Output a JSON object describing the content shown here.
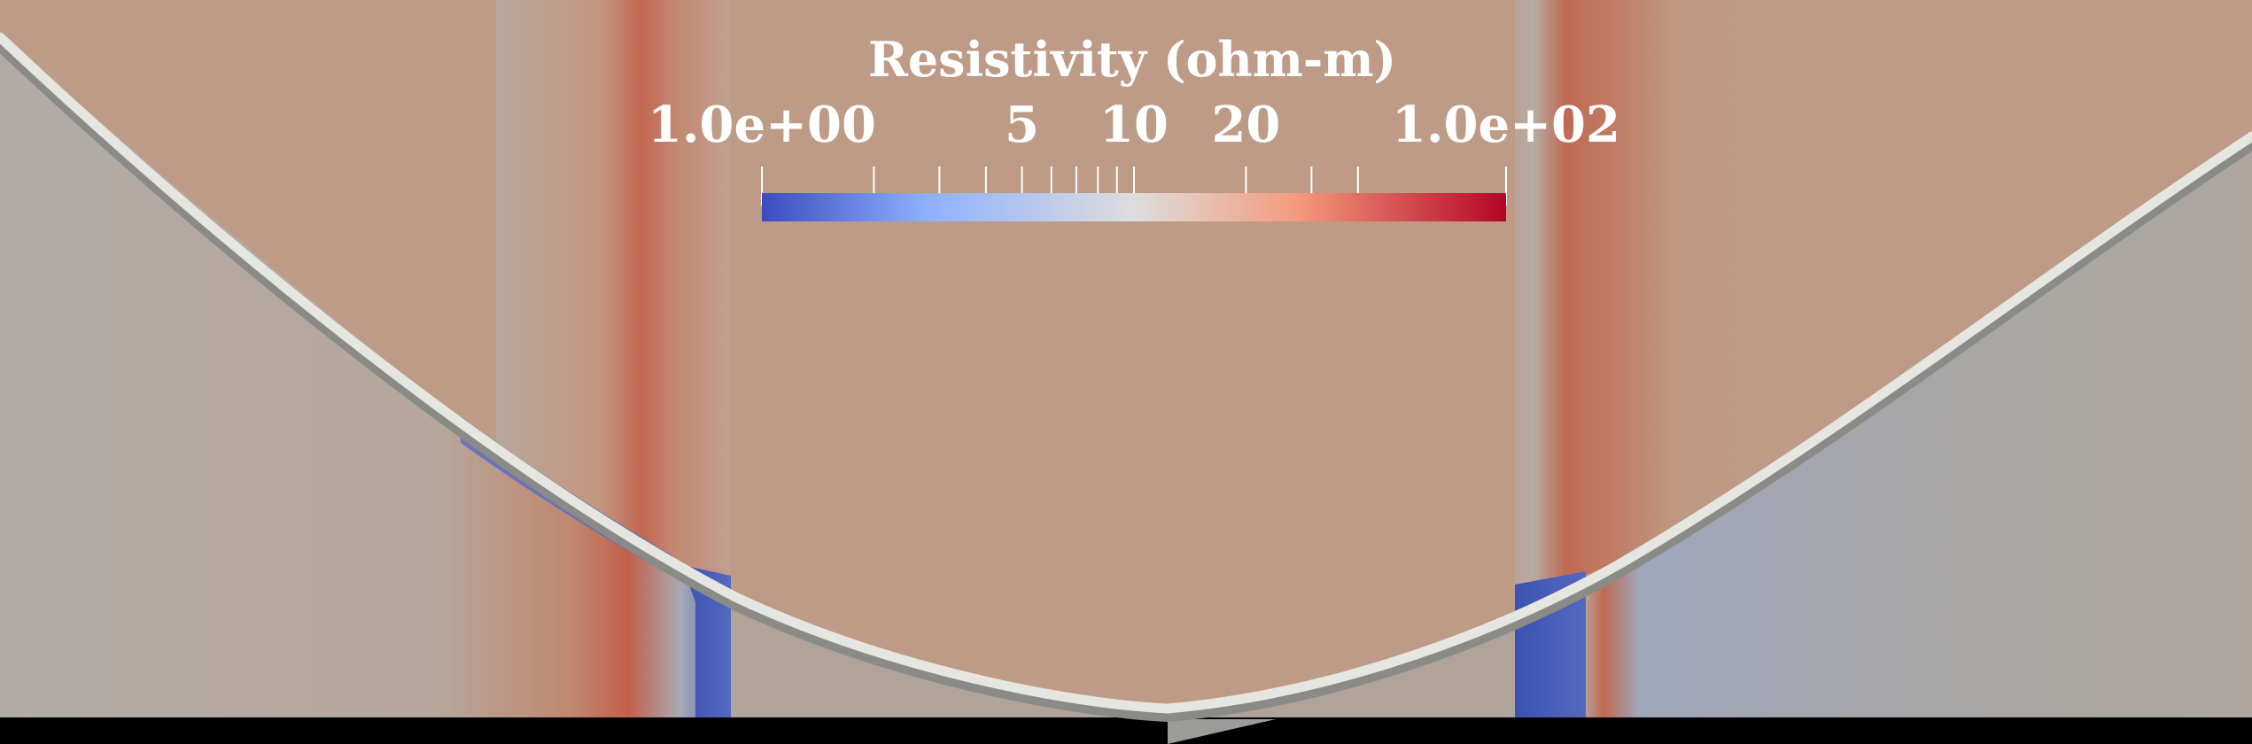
{
  "legend": {
    "title": "Resistivity (ohm-m)",
    "scale": "log",
    "range": [
      1,
      100
    ],
    "labels": [
      {
        "text": "1.0e+00",
        "value": 1
      },
      {
        "text": "5",
        "value": 5
      },
      {
        "text": "10",
        "value": 10
      },
      {
        "text": "20",
        "value": 20
      },
      {
        "text": "1.0e+02",
        "value": 100
      }
    ],
    "minor_ticks": [
      2,
      3,
      4,
      5,
      6,
      7,
      8,
      9,
      10,
      20,
      30,
      40
    ],
    "colormap": [
      "#3b4cc0",
      "#8db0fe",
      "#dddddd",
      "#f49a7b",
      "#b40426"
    ]
  },
  "colors": {
    "background_rock": "#bd9b87",
    "host_left": "#b4aaa2",
    "host_right": "#ada59f",
    "conductive": "#3e55b4",
    "resistive_streak": "#bf6a52",
    "wellbore": "#dcdcd6"
  }
}
